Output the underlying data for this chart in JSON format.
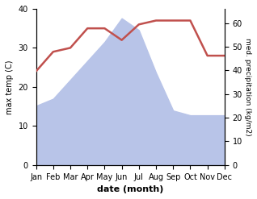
{
  "months": [
    "Jan",
    "Feb",
    "Mar",
    "Apr",
    "May",
    "Jun",
    "Jul",
    "Aug",
    "Sep",
    "Oct",
    "Nov",
    "Dec"
  ],
  "month_indices": [
    0,
    1,
    2,
    3,
    4,
    5,
    6,
    7,
    8,
    9,
    10,
    11
  ],
  "precipitation": [
    25,
    28,
    36,
    44,
    52,
    62,
    57,
    39,
    23,
    21,
    21,
    21
  ],
  "max_temp": [
    24,
    29,
    30,
    35,
    35,
    32,
    36,
    37,
    37,
    37,
    28,
    28
  ],
  "precip_fill_color": "#b8c4e8",
  "temp_line_color": "#c0504d",
  "ylim_temp": [
    0,
    40
  ],
  "ylim_precip": [
    0,
    66
  ],
  "ylabel_left": "max temp (C)",
  "ylabel_right": "med. precipitation (kg/m2)",
  "xlabel": "date (month)",
  "right_ticks": [
    0,
    10,
    20,
    30,
    40,
    50,
    60
  ],
  "left_ticks": [
    0,
    10,
    20,
    30,
    40
  ],
  "fig_width": 3.18,
  "fig_height": 2.47,
  "dpi": 100
}
